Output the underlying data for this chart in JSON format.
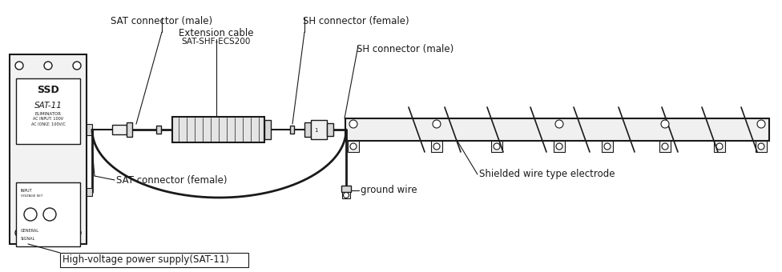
{
  "bg_color": "#ffffff",
  "line_color": "#1a1a1a",
  "gray_fill": "#d8d8d8",
  "light_fill": "#f0f0f0",
  "labels": {
    "sat_male": "SAT connector (male)",
    "sh_female": "SH connector (female)",
    "ext_cable": "Extension cable",
    "ext_cable_model": "SAT-SHF-ECS200",
    "sh_male": "SH connector (male)",
    "sat_female": "SAT connector (female)",
    "ground_wire": "ground wire",
    "shielded": "Shielded wire type electrode",
    "power_supply": "High-voltage power supply(SAT-11)"
  },
  "figsize": [
    9.76,
    3.4
  ],
  "dpi": 100
}
